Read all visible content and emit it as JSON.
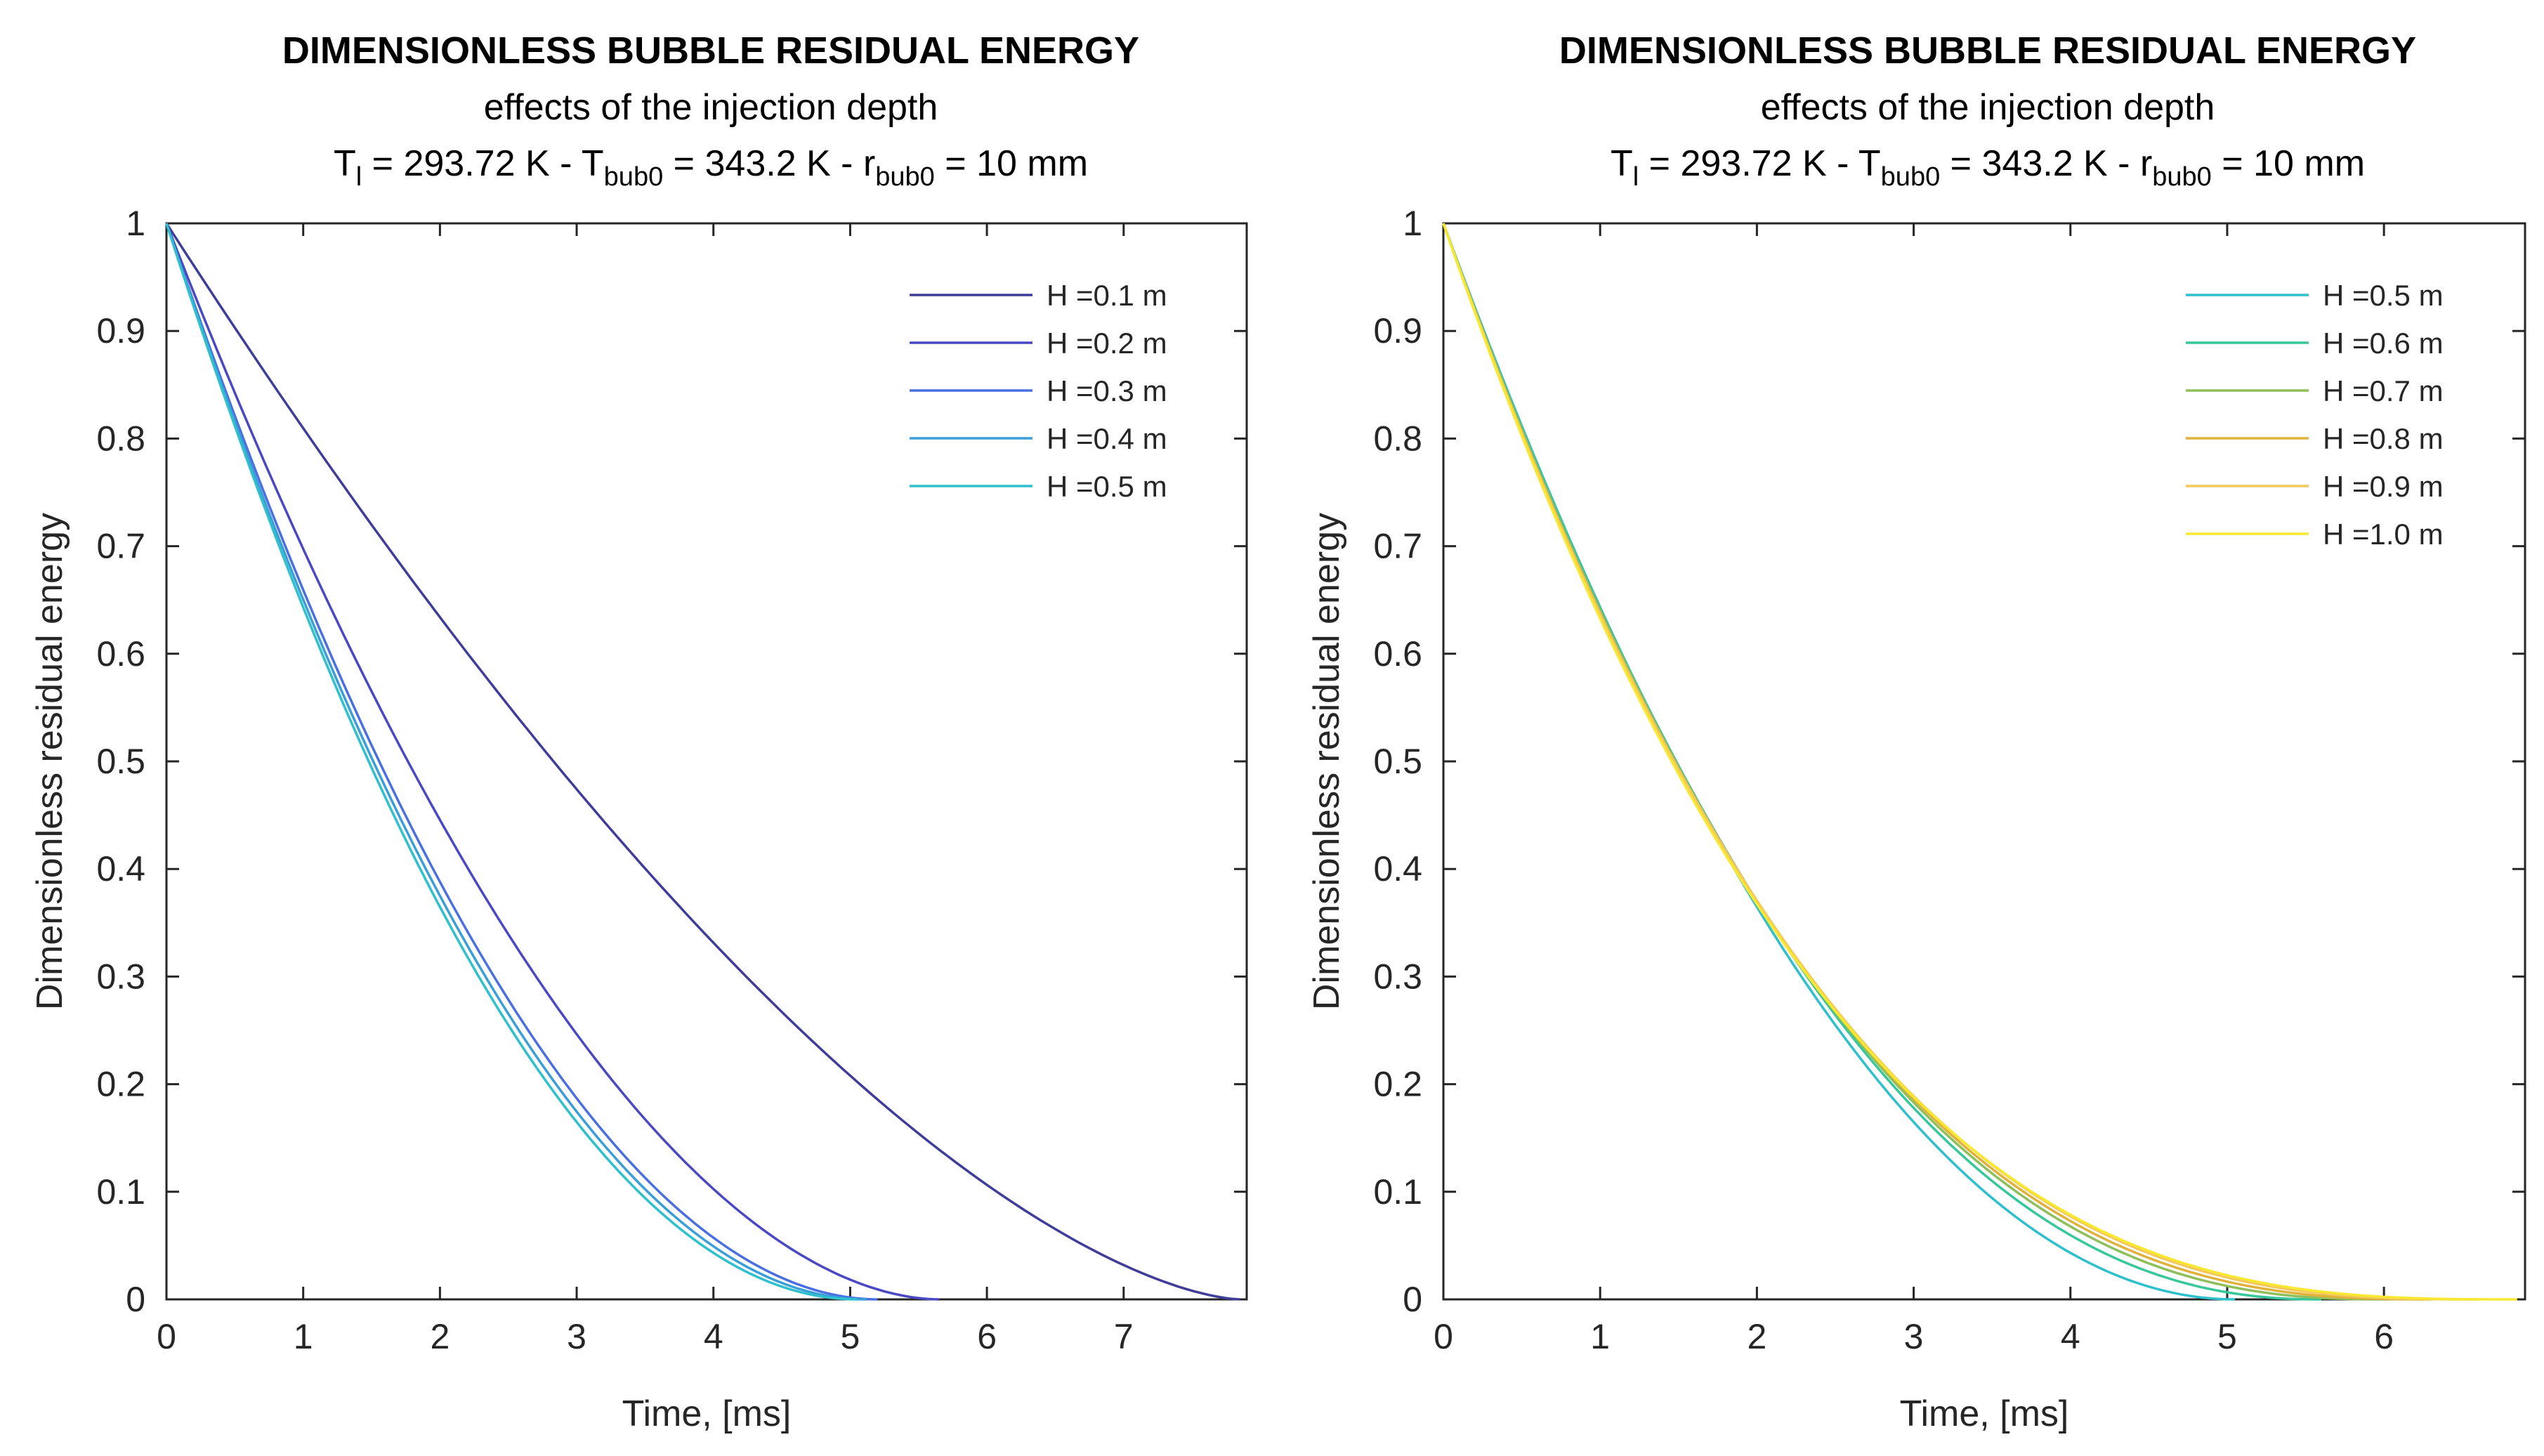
{
  "chart_data": [
    {
      "type": "line",
      "title": "DIMENSIONLESS BUBBLE RESIDUAL ENERGY",
      "subtitle": "effects of the injection depth",
      "params": {
        "tl_label": "T",
        "tl_sub": "l",
        "tl_value": " = 293.72 K - ",
        "tb_label": "T",
        "tb_sub": "bub0",
        "tb_value": " = 343.2 K - ",
        "rb_label": "r",
        "rb_sub": "bub0",
        "rb_value": " = 10 mm"
      },
      "xlabel": "Time, [ms]",
      "ylabel": "Dimensionless residual energy",
      "xlim": [
        0,
        7.9
      ],
      "ylim": [
        0,
        1
      ],
      "xticks": [
        "0",
        "1",
        "2",
        "3",
        "4",
        "5",
        "6",
        "7"
      ],
      "yticks": [
        "0",
        "0.1",
        "0.2",
        "0.3",
        "0.4",
        "0.5",
        "0.6",
        "0.7",
        "0.8",
        "0.9",
        "1"
      ],
      "legend_position": "top-right",
      "series": [
        {
          "name": "H =0.1 m",
          "color": "#3f3d99",
          "t_end": 7.85,
          "shape": 1.55
        },
        {
          "name": "H =0.2 m",
          "color": "#4b48c4",
          "t_end": 5.65,
          "shape": 1.85
        },
        {
          "name": "H =0.3 m",
          "color": "#4a6fe0",
          "t_end": 5.2,
          "shape": 1.95
        },
        {
          "name": "H =0.4 m",
          "color": "#3a9fd8",
          "t_end": 5.12,
          "shape": 1.98
        },
        {
          "name": "H =0.5 m",
          "color": "#2ec0cc",
          "t_end": 5.05,
          "shape": 2.0
        }
      ]
    },
    {
      "type": "line",
      "title": "DIMENSIONLESS BUBBLE RESIDUAL ENERGY",
      "subtitle": "effects of the injection depth",
      "params": {
        "tl_label": "T",
        "tl_sub": "l",
        "tl_value": " = 293.72 K - ",
        "tb_label": "T",
        "tb_sub": "bub0",
        "tb_value": " = 343.2 K - ",
        "rb_label": "r",
        "rb_sub": "bub0",
        "rb_value": " = 10 mm"
      },
      "xlabel": "Time, [ms]",
      "ylabel": "Dimensionless residual energy",
      "xlim": [
        0,
        6.9
      ],
      "ylim": [
        0,
        1
      ],
      "xticks": [
        "0",
        "1",
        "2",
        "3",
        "4",
        "5",
        "6"
      ],
      "yticks": [
        "0",
        "0.1",
        "0.2",
        "0.3",
        "0.4",
        "0.5",
        "0.6",
        "0.7",
        "0.8",
        "0.9",
        "1"
      ],
      "legend_position": "top-right",
      "series": [
        {
          "name": "H =0.5 m",
          "color": "#2ec0cc",
          "t_end": 5.05,
          "shape": 2.0
        },
        {
          "name": "H =0.6 m",
          "color": "#36c79a",
          "t_end": 5.6,
          "shape": 2.25
        },
        {
          "name": "H =0.7 m",
          "color": "#8fbf5a",
          "t_end": 6.0,
          "shape": 2.45
        },
        {
          "name": "H =0.8 m",
          "color": "#e0b23c",
          "t_end": 6.3,
          "shape": 2.6
        },
        {
          "name": "H =0.9 m",
          "color": "#f4c85a",
          "t_end": 6.6,
          "shape": 2.75
        },
        {
          "name": "H =1.0 m",
          "color": "#f8e830",
          "t_end": 6.85,
          "shape": 2.9
        }
      ]
    }
  ]
}
